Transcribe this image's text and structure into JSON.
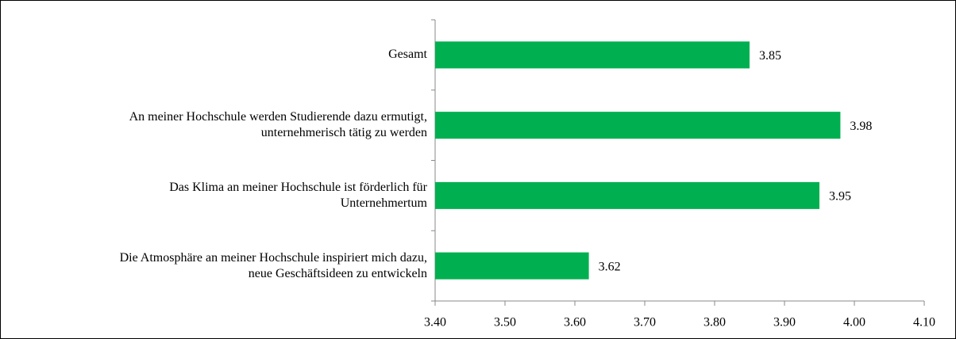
{
  "chart_data": {
    "type": "bar",
    "orientation": "horizontal",
    "categories": [
      "Gesamt",
      "An meiner Hochschule werden Studierende dazu ermutigt,\nunternehmerisch tätig zu werden",
      "Das Klima an meiner Hochschule ist förderlich für\nUnternehmertum",
      "Die Atmosphäre an meiner Hochschule inspiriert mich dazu,\nneue Geschäftsideen zu entwickeln"
    ],
    "values": [
      3.85,
      3.98,
      3.95,
      3.62
    ],
    "color": "#00b050",
    "xlim": [
      3.4,
      4.1
    ],
    "xticks": [
      {
        "value": 3.4,
        "label": "3.40"
      },
      {
        "value": 3.5,
        "label": "3.50"
      },
      {
        "value": 3.6,
        "label": "3.60"
      },
      {
        "value": 3.7,
        "label": "3.70"
      },
      {
        "value": 3.8,
        "label": "3.80"
      },
      {
        "value": 3.9,
        "label": "3.90"
      },
      {
        "value": 4.0,
        "label": "4.00"
      },
      {
        "value": 4.1,
        "label": "4.10"
      }
    ],
    "grid": false
  }
}
